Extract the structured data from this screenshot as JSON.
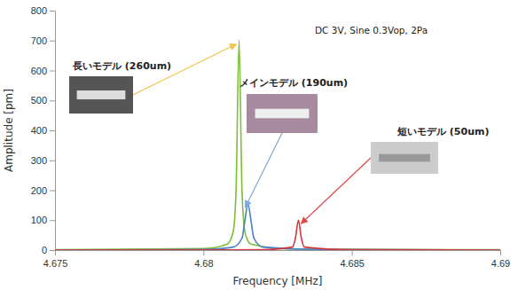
{
  "chart_data": {
    "type": "line",
    "x_label": "Frequency [MHz]",
    "y_label": "Amplitude [pm]",
    "annotations": [
      "DC 3V, Sine 0.3Vop, 2Pa"
    ],
    "xlim": [
      4.675,
      4.69
    ],
    "xticks": [
      4.675,
      4.68,
      4.685,
      4.69
    ],
    "ylim": [
      0,
      800
    ],
    "yticks": [
      0,
      100,
      200,
      300,
      400,
      500,
      600,
      700,
      800
    ],
    "grid": false,
    "series": [
      {
        "name": "長いモデル (260um)",
        "color": "#7cbf3a",
        "x": [
          4.675,
          4.68,
          4.6808,
          4.681,
          4.6811,
          4.6812,
          4.6813,
          4.6814,
          4.6816,
          4.683,
          4.69
        ],
        "values": [
          1,
          5,
          20,
          60,
          200,
          700,
          200,
          60,
          20,
          3,
          1
        ]
      },
      {
        "name": "メインモデル (190um)",
        "color": "#4a7fc9",
        "x": [
          4.675,
          4.68,
          4.681,
          4.6813,
          4.6814,
          4.6815,
          4.6816,
          4.6817,
          4.682,
          4.684,
          4.69
        ],
        "values": [
          0,
          2,
          10,
          40,
          100,
          155,
          100,
          40,
          10,
          2,
          0
        ]
      },
      {
        "name": "短いモデル (50um)",
        "color": "#d2363a",
        "x": [
          4.675,
          4.682,
          4.683,
          4.6831,
          4.6832,
          4.6833,
          4.6834,
          4.685,
          4.69
        ],
        "values": [
          0,
          1,
          10,
          40,
          100,
          40,
          10,
          1,
          0
        ]
      }
    ]
  }
}
